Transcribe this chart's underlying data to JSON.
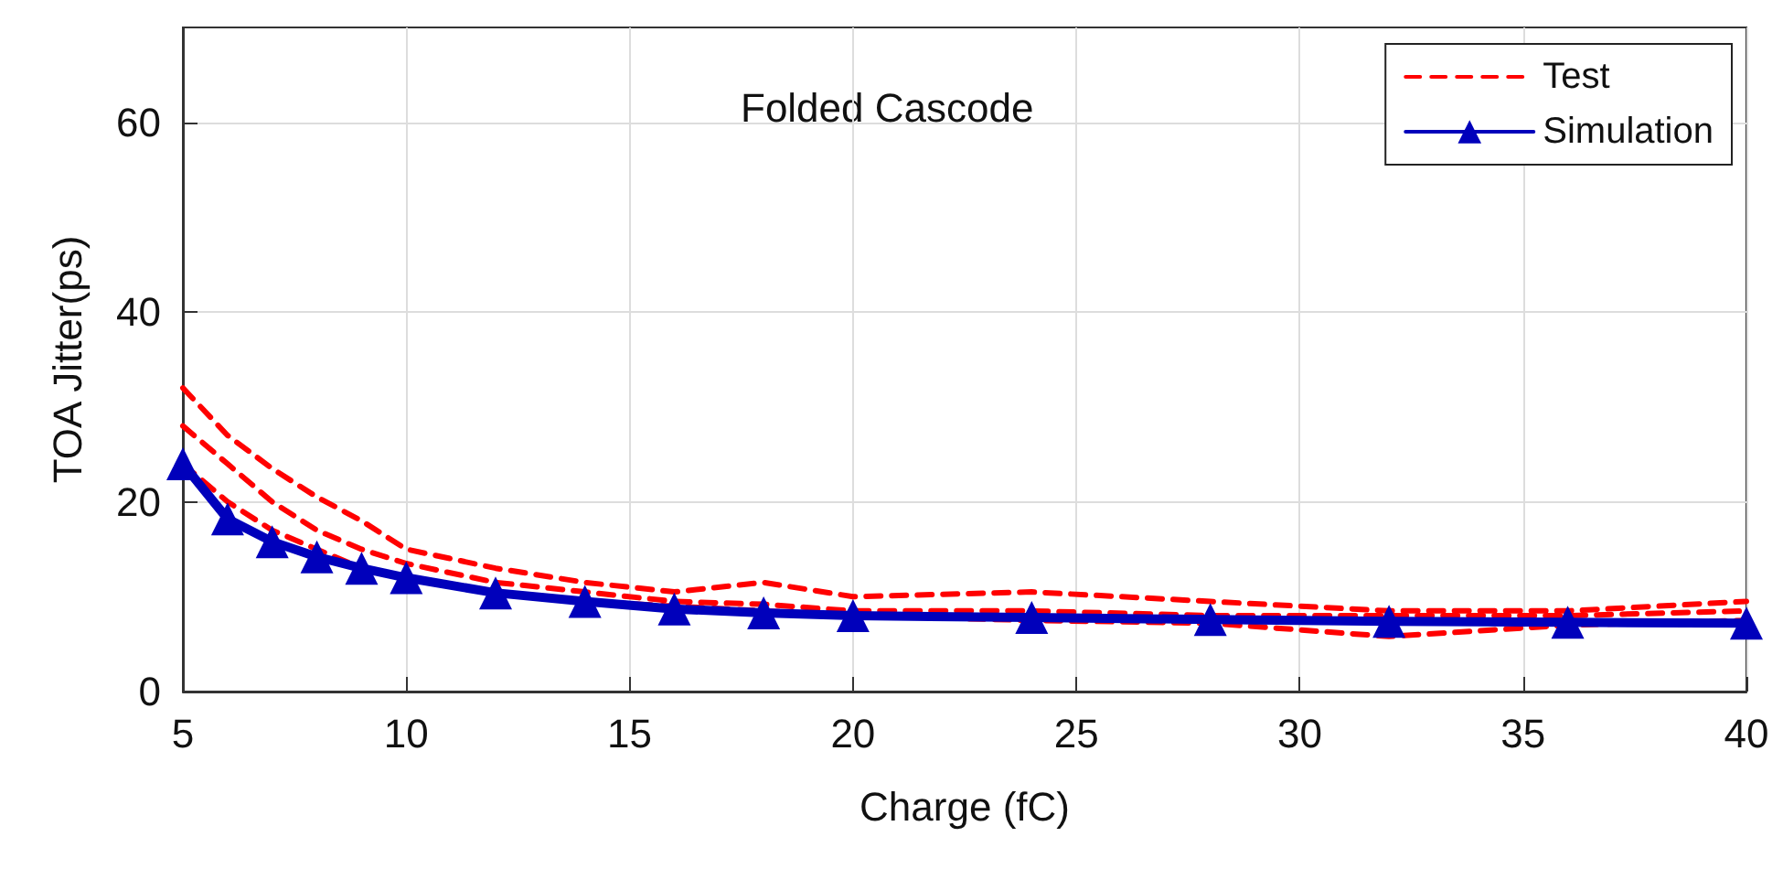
{
  "chart_data": {
    "type": "line",
    "xlabel": "Charge (fC)",
    "ylabel": "TOA Jitter(ps)",
    "annotations": [
      "Folded Cascode"
    ],
    "x": [
      5,
      6,
      7,
      8,
      9,
      10,
      12,
      14,
      16,
      18,
      20,
      24,
      28,
      32,
      36,
      40
    ],
    "series": [
      {
        "name": "Test",
        "color": "#ff0000",
        "line_style": "dashed",
        "marker": "none",
        "values": [
          32,
          27,
          23.5,
          20.5,
          18,
          15,
          13,
          11.5,
          10.5,
          11.5,
          10,
          10.5,
          9.5,
          8.5,
          8.5,
          9.5
        ]
      },
      {
        "color": "#ff0000",
        "line_style": "dashed",
        "marker": "none",
        "values": [
          28,
          24,
          20,
          17,
          15,
          13.5,
          11.5,
          10.5,
          9.5,
          9.2,
          8.5,
          8.5,
          8,
          8,
          8,
          8.5
        ]
      },
      {
        "color": "#ff0000",
        "line_style": "dashed",
        "marker": "none",
        "values": [
          24,
          20,
          17,
          15,
          13,
          12,
          10.5,
          9.5,
          9,
          8.5,
          8,
          7.5,
          7.2,
          5.8,
          7,
          7.5
        ]
      },
      {
        "name": "Simulation",
        "color": "#0000bb",
        "line_style": "solid",
        "marker": "triangle",
        "values": [
          24,
          18.2,
          15.8,
          14.2,
          13,
          12,
          10.4,
          9.5,
          8.7,
          8.3,
          8,
          7.8,
          7.6,
          7.4,
          7.3,
          7.2
        ]
      }
    ],
    "xlim": [
      5,
      40
    ],
    "xticks": [
      5,
      10,
      15,
      20,
      25,
      30,
      35,
      40
    ],
    "ylim": [
      0,
      70
    ],
    "yticks": [
      0,
      20,
      40,
      60
    ],
    "grid": true,
    "legend": "top right"
  }
}
